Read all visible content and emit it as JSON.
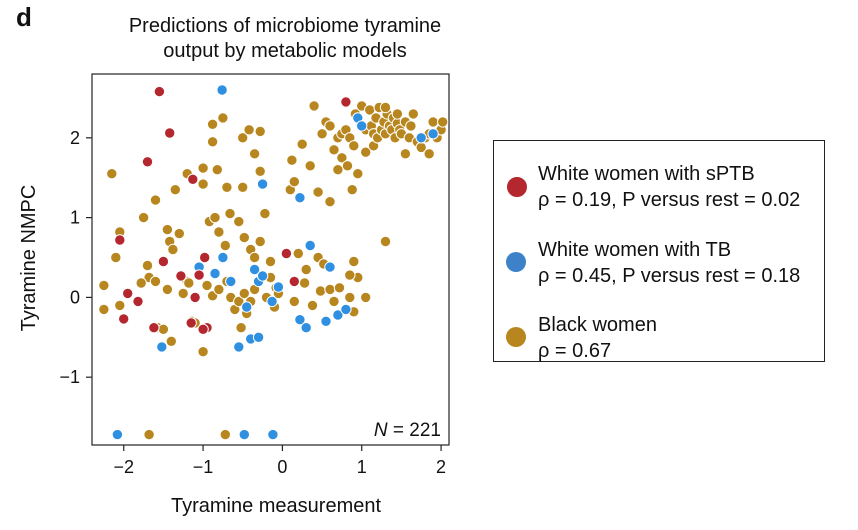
{
  "panel_label": "d",
  "chart_data": {
    "type": "scatter",
    "title": [
      "Predictions of microbiome tyramine",
      "output by metabolic models"
    ],
    "xlabel": "Tyramine measurement",
    "ylabel": "Tyramine NMPC",
    "xlim": [
      -2.4,
      2.1
    ],
    "ylim": [
      -1.85,
      2.8
    ],
    "xticks": [
      -2,
      -1,
      0,
      1,
      2
    ],
    "yticks": [
      -1,
      0,
      1,
      2
    ],
    "xtick_labels": [
      "−2",
      "−1",
      "0",
      "1",
      "2"
    ],
    "ytick_labels": [
      "−1",
      "0",
      "1",
      "2"
    ],
    "grid": false,
    "annotation": {
      "italic": "N",
      "text": " = 221"
    },
    "legend_position": "right",
    "series": [
      {
        "name": "White women with sPTB",
        "line1": "White women with sPTB",
        "line2": "ρ = 0.19, P versus rest = 0.02",
        "color": "#b5272e",
        "points": [
          [
            -1.55,
            2.58
          ],
          [
            -1.42,
            2.06
          ],
          [
            -1.7,
            1.7
          ],
          [
            -1.13,
            1.48
          ],
          [
            -2.05,
            0.72
          ],
          [
            -1.5,
            0.45
          ],
          [
            -1.95,
            0.05
          ],
          [
            -1.82,
            -0.05
          ],
          [
            -1.62,
            -0.38
          ],
          [
            -2.0,
            -0.27
          ],
          [
            -1.28,
            0.27
          ],
          [
            -1.05,
            0.28
          ],
          [
            -1.1,
            0.0
          ],
          [
            -0.98,
            0.5
          ],
          [
            -0.95,
            -0.38
          ],
          [
            -1.15,
            -0.32
          ],
          [
            -1.0,
            -0.4
          ],
          [
            0.05,
            0.55
          ],
          [
            0.15,
            0.2
          ],
          [
            0.8,
            2.45
          ]
        ]
      },
      {
        "name": "White women with TB",
        "line1": "White women with TB",
        "line2": "ρ = 0.45, P versus rest = 0.18",
        "color": "#2f8fe0",
        "points": [
          [
            -0.76,
            2.6
          ],
          [
            -1.52,
            -0.62
          ],
          [
            -1.05,
            0.38
          ],
          [
            -0.85,
            0.3
          ],
          [
            -0.75,
            0.5
          ],
          [
            -0.65,
            0.2
          ],
          [
            -0.45,
            -0.12
          ],
          [
            -0.35,
            0.35
          ],
          [
            -0.3,
            0.2
          ],
          [
            -0.4,
            -0.52
          ],
          [
            -0.3,
            -0.5
          ],
          [
            -0.55,
            -0.62
          ],
          [
            -0.25,
            0.27
          ],
          [
            -0.05,
            0.13
          ],
          [
            -0.13,
            -0.05
          ],
          [
            0.22,
            -0.28
          ],
          [
            0.3,
            -0.38
          ],
          [
            0.35,
            0.65
          ],
          [
            0.6,
            0.38
          ],
          [
            0.55,
            -0.3
          ],
          [
            0.7,
            -0.22
          ],
          [
            0.8,
            -0.15
          ],
          [
            0.22,
            1.25
          ],
          [
            -0.25,
            1.42
          ],
          [
            0.95,
            2.25
          ],
          [
            1.0,
            2.15
          ],
          [
            1.75,
            2.0
          ],
          [
            1.9,
            2.05
          ],
          [
            -2.08,
            -1.72
          ],
          [
            -0.48,
            -1.72
          ],
          [
            -0.12,
            -1.72
          ]
        ]
      },
      {
        "name": "Black women",
        "line1": "Black women",
        "line2": "ρ = 0.67",
        "color": "#b8861e",
        "points": [
          [
            -2.15,
            1.55
          ],
          [
            -2.05,
            0.82
          ],
          [
            -2.1,
            0.5
          ],
          [
            -2.25,
            0.15
          ],
          [
            -2.25,
            -0.15
          ],
          [
            -2.05,
            -0.1
          ],
          [
            -1.7,
            0.4
          ],
          [
            -1.68,
            0.25
          ],
          [
            -1.78,
            0.18
          ],
          [
            -1.6,
            0.2
          ],
          [
            -1.57,
            -0.38
          ],
          [
            -1.5,
            -0.4
          ],
          [
            -1.4,
            -0.55
          ],
          [
            -1.45,
            0.1
          ],
          [
            -1.45,
            0.85
          ],
          [
            -1.42,
            0.7
          ],
          [
            -1.38,
            0.6
          ],
          [
            -1.3,
            0.8
          ],
          [
            -1.2,
            0.2
          ],
          [
            -1.25,
            0.05
          ],
          [
            -1.18,
            0.18
          ],
          [
            -1.14,
            -0.3
          ],
          [
            -1.1,
            -0.32
          ],
          [
            -1.0,
            -0.68
          ],
          [
            -0.95,
            0.15
          ],
          [
            -0.88,
            0.02
          ],
          [
            -0.8,
            0.1
          ],
          [
            -0.7,
            0.2
          ],
          [
            -0.65,
            0.0
          ],
          [
            -0.6,
            -0.15
          ],
          [
            -0.55,
            -0.05
          ],
          [
            -0.52,
            -0.38
          ],
          [
            -0.48,
            0.05
          ],
          [
            -0.45,
            -0.2
          ],
          [
            -0.4,
            -0.05
          ],
          [
            -0.35,
            0.1
          ],
          [
            -0.2,
            0.0
          ],
          [
            -0.15,
            0.25
          ],
          [
            -0.1,
            -0.12
          ],
          [
            -0.08,
            0.12
          ],
          [
            -0.05,
            0.05
          ],
          [
            -1.75,
            1.0
          ],
          [
            -1.6,
            1.22
          ],
          [
            -1.35,
            1.35
          ],
          [
            -1.2,
            1.55
          ],
          [
            -1.0,
            1.42
          ],
          [
            -0.92,
            0.95
          ],
          [
            -0.85,
            1.0
          ],
          [
            -0.8,
            0.82
          ],
          [
            -0.72,
            0.65
          ],
          [
            -0.66,
            1.05
          ],
          [
            -0.55,
            0.95
          ],
          [
            -0.48,
            0.75
          ],
          [
            -0.4,
            0.6
          ],
          [
            -0.35,
            0.5
          ],
          [
            -0.28,
            0.7
          ],
          [
            -0.22,
            1.05
          ],
          [
            -0.15,
            0.45
          ],
          [
            -0.5,
            1.38
          ],
          [
            -0.35,
            1.8
          ],
          [
            -0.28,
            1.58
          ],
          [
            -0.75,
            2.25
          ],
          [
            -0.88,
            2.17
          ],
          [
            -0.5,
            2.0
          ],
          [
            -0.42,
            2.1
          ],
          [
            -0.28,
            2.08
          ],
          [
            -0.82,
            1.6
          ],
          [
            -0.7,
            1.38
          ],
          [
            -1.0,
            1.62
          ],
          [
            -0.88,
            1.95
          ],
          [
            0.1,
            1.35
          ],
          [
            0.15,
            1.45
          ],
          [
            0.12,
            1.72
          ],
          [
            0.25,
            1.92
          ],
          [
            0.35,
            1.65
          ],
          [
            0.45,
            1.32
          ],
          [
            0.6,
            1.2
          ],
          [
            0.7,
            1.6
          ],
          [
            0.75,
            1.75
          ],
          [
            0.82,
            1.65
          ],
          [
            0.88,
            1.35
          ],
          [
            0.95,
            1.55
          ],
          [
            1.05,
            1.82
          ],
          [
            1.15,
            1.9
          ],
          [
            0.4,
            2.4
          ],
          [
            0.55,
            2.2
          ],
          [
            0.5,
            2.05
          ],
          [
            0.6,
            2.15
          ],
          [
            0.65,
            1.85
          ],
          [
            0.7,
            2.0
          ],
          [
            0.75,
            2.05
          ],
          [
            0.8,
            2.1
          ],
          [
            0.85,
            2.0
          ],
          [
            0.9,
            1.9
          ],
          [
            0.92,
            2.3
          ],
          [
            1.0,
            2.4
          ],
          [
            1.05,
            2.1
          ],
          [
            1.1,
            2.35
          ],
          [
            1.12,
            2.15
          ],
          [
            1.15,
            2.05
          ],
          [
            1.18,
            2.25
          ],
          [
            1.2,
            2.0
          ],
          [
            1.22,
            2.38
          ],
          [
            1.25,
            2.1
          ],
          [
            1.28,
            2.2
          ],
          [
            1.3,
            2.05
          ],
          [
            1.32,
            2.3
          ],
          [
            1.35,
            2.15
          ],
          [
            1.38,
            2.1
          ],
          [
            1.4,
            2.25
          ],
          [
            1.42,
            2.0
          ],
          [
            1.45,
            2.18
          ],
          [
            1.48,
            2.1
          ],
          [
            1.5,
            2.05
          ],
          [
            1.55,
            2.2
          ],
          [
            1.6,
            2.0
          ],
          [
            1.62,
            2.15
          ],
          [
            1.65,
            2.3
          ],
          [
            1.7,
            1.95
          ],
          [
            1.75,
            1.88
          ],
          [
            1.8,
            2.0
          ],
          [
            1.85,
            2.05
          ],
          [
            1.9,
            2.2
          ],
          [
            1.95,
            2.0
          ],
          [
            2.0,
            2.1
          ],
          [
            2.02,
            2.2
          ],
          [
            1.85,
            1.8
          ],
          [
            1.45,
            2.3
          ],
          [
            1.55,
            1.8
          ],
          [
            1.3,
            2.38
          ],
          [
            0.2,
            0.55
          ],
          [
            0.3,
            0.35
          ],
          [
            0.28,
            0.18
          ],
          [
            0.45,
            0.5
          ],
          [
            0.52,
            0.42
          ],
          [
            0.48,
            0.08
          ],
          [
            0.38,
            -0.1
          ],
          [
            0.6,
            0.1
          ],
          [
            0.65,
            -0.05
          ],
          [
            0.72,
            0.12
          ],
          [
            0.85,
            0.0
          ],
          [
            0.9,
            -0.18
          ],
          [
            0.95,
            0.25
          ],
          [
            1.05,
            0.0
          ],
          [
            1.3,
            0.7
          ],
          [
            0.9,
            0.45
          ],
          [
            0.85,
            0.28
          ],
          [
            0.15,
            -0.05
          ],
          [
            -1.68,
            -1.72
          ],
          [
            -0.72,
            -1.72
          ]
        ]
      }
    ]
  }
}
